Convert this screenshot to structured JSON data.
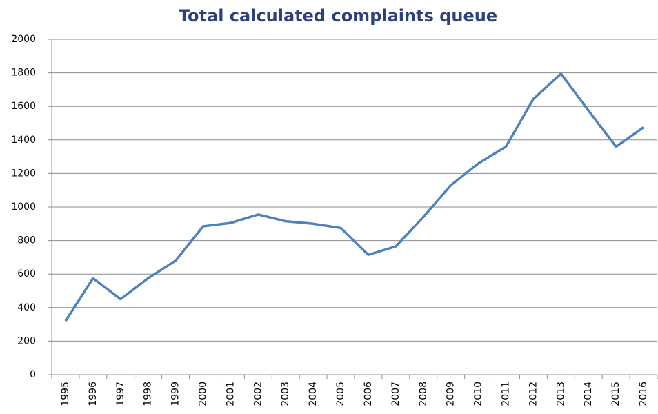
{
  "chart_data": {
    "type": "line",
    "title": "Total calculated complaints queue",
    "categories": [
      "1995",
      "1996",
      "1997",
      "1998",
      "1999",
      "2000",
      "2001",
      "2002",
      "2003",
      "2004",
      "2005",
      "2006",
      "2007",
      "2008",
      "2009",
      "2010",
      "2011",
      "2012",
      "2013",
      "2014",
      "2015",
      "2016"
    ],
    "series": [
      {
        "name": "Total calculated complaints queue",
        "color": "#4f81bd",
        "values": [
          320,
          575,
          450,
          575,
          680,
          885,
          905,
          955,
          915,
          900,
          875,
          715,
          765,
          940,
          1130,
          1260,
          1360,
          1645,
          1795,
          1575,
          1360,
          1475
        ]
      }
    ],
    "ylim": [
      0,
      2000
    ],
    "yticks": [
      0,
      200,
      400,
      600,
      800,
      1000,
      1200,
      1400,
      1600,
      1800,
      2000
    ],
    "grid": true
  }
}
